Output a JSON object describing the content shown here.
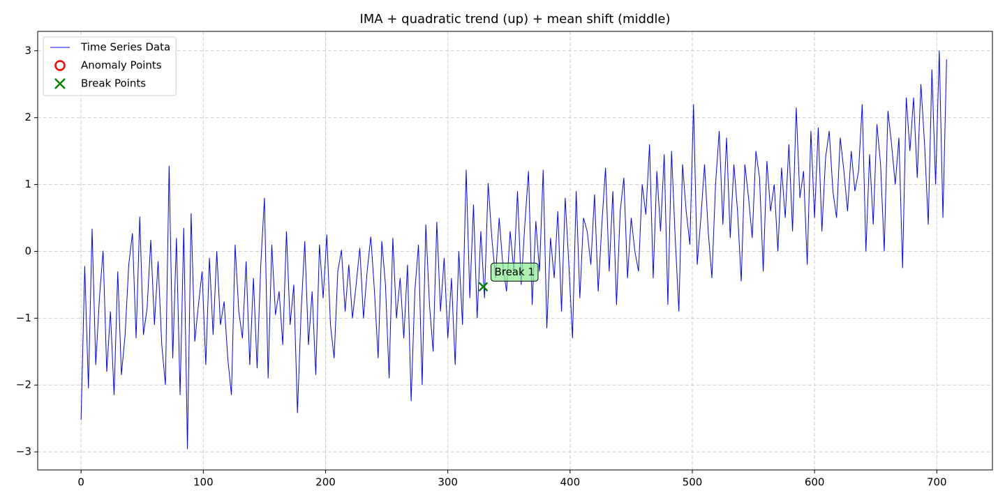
{
  "chart_data": {
    "type": "line",
    "title": "IMA + quadratic trend (up) + mean shift (middle)",
    "xlim": [
      -35.5,
      745.5
    ],
    "ylim": [
      -3.27,
      3.29
    ],
    "xticks": [
      0,
      100,
      200,
      300,
      400,
      500,
      600,
      700
    ],
    "yticks": [
      {
        "value": -3,
        "label": "−3"
      },
      {
        "value": -2,
        "label": "−2"
      },
      {
        "value": -1,
        "label": "−1"
      },
      0,
      1,
      2,
      3
    ],
    "grid": true,
    "legend": "upper left",
    "series": [
      {
        "name": "Time Series Data",
        "color": "#0000ff",
        "marker": "line",
        "x": [
          0,
          3,
          6,
          9,
          12,
          15,
          18,
          21,
          24,
          27,
          30,
          33,
          36,
          39,
          42,
          45,
          48,
          51,
          54,
          57,
          60,
          63,
          66,
          69,
          72,
          75,
          78,
          81,
          84,
          87,
          90,
          93,
          96,
          99,
          102,
          105,
          108,
          111,
          114,
          117,
          120,
          123,
          126,
          129,
          132,
          135,
          138,
          141,
          144,
          147,
          150,
          153,
          156,
          159,
          162,
          165,
          168,
          171,
          174,
          177,
          180,
          183,
          186,
          189,
          192,
          195,
          198,
          201,
          204,
          207,
          210,
          213,
          216,
          219,
          222,
          225,
          228,
          231,
          234,
          237,
          240,
          243,
          246,
          249,
          252,
          255,
          258,
          261,
          264,
          267,
          270,
          273,
          276,
          279,
          282,
          285,
          288,
          291,
          294,
          297,
          300,
          303,
          306,
          309,
          312,
          315,
          318,
          321,
          324,
          327,
          330,
          333,
          336,
          339,
          342,
          345,
          348,
          351,
          354,
          357,
          360,
          363,
          366,
          369,
          372,
          375,
          378,
          381,
          384,
          387,
          390,
          393,
          396,
          399,
          402,
          405,
          408,
          411,
          414,
          417,
          420,
          423,
          426,
          429,
          432,
          435,
          438,
          441,
          444,
          447,
          450,
          453,
          456,
          459,
          462,
          465,
          468,
          471,
          474,
          477,
          480,
          483,
          486,
          489,
          492,
          495,
          498,
          501,
          504,
          507,
          510,
          513,
          516,
          519,
          522,
          525,
          528,
          531,
          534,
          537,
          540,
          543,
          546,
          549,
          552,
          555,
          558,
          561,
          564,
          567,
          570,
          573,
          576,
          579,
          582,
          585,
          588,
          591,
          594,
          597,
          600,
          603,
          606,
          609,
          612,
          615,
          618,
          621,
          624,
          627,
          630,
          633,
          636,
          639,
          642,
          645,
          648,
          651,
          654,
          657,
          660,
          663,
          666,
          669,
          672,
          675,
          678,
          681,
          684,
          687,
          690,
          693,
          696,
          699,
          702,
          705,
          708
        ],
        "values": [
          -2.52,
          -0.22,
          -2.05,
          0.34,
          -1.7,
          -0.7,
          0.01,
          -1.8,
          -0.9,
          -2.15,
          -0.3,
          -1.85,
          -1.25,
          -0.2,
          0.27,
          -1.3,
          0.52,
          -1.25,
          -0.85,
          0.17,
          -1.1,
          -0.15,
          -1.4,
          -2.0,
          1.28,
          -1.6,
          0.2,
          -2.15,
          0.35,
          -2.96,
          0.57,
          -1.35,
          -0.8,
          -0.3,
          -1.7,
          -0.1,
          -1.25,
          0.0,
          -1.1,
          -0.75,
          -1.6,
          -2.15,
          0.1,
          -0.9,
          -1.3,
          -0.15,
          -1.7,
          -0.4,
          -1.75,
          -0.2,
          0.8,
          -1.9,
          0.1,
          -0.95,
          -0.6,
          -1.4,
          0.3,
          -1.1,
          -0.5,
          -2.42,
          -0.9,
          0.15,
          -1.4,
          -0.6,
          -1.85,
          0.1,
          -0.7,
          0.25,
          -1.1,
          -1.6,
          -0.3,
          0.02,
          -0.9,
          -0.2,
          -1.0,
          -0.5,
          0.05,
          -1.0,
          -0.3,
          0.22,
          -0.6,
          -1.6,
          0.15,
          -0.5,
          -1.9,
          0.2,
          -1.0,
          -0.4,
          -1.3,
          -0.2,
          -2.24,
          -0.6,
          0.1,
          -2.0,
          0.4,
          -0.8,
          -1.5,
          0.44,
          -0.9,
          -0.1,
          -1.3,
          -0.4,
          -1.7,
          0.0,
          -1.1,
          1.22,
          -0.7,
          0.7,
          -1.0,
          0.3,
          -0.7,
          1.02,
          0.2,
          -0.4,
          0.5,
          -0.2,
          -0.6,
          0.3,
          -0.3,
          0.9,
          -0.5,
          0.4,
          1.2,
          -0.8,
          0.45,
          -0.3,
          1.22,
          -1.15,
          0.2,
          -0.4,
          0.6,
          -0.9,
          0.8,
          -0.2,
          -1.3,
          0.9,
          -0.7,
          0.5,
          0.3,
          -0.2,
          0.85,
          -0.6,
          0.4,
          1.25,
          -0.3,
          0.9,
          -0.8,
          0.6,
          1.1,
          -0.4,
          0.5,
          0.0,
          -0.3,
          1.0,
          0.55,
          1.6,
          -0.4,
          1.2,
          0.3,
          1.45,
          -0.8,
          1.5,
          0.2,
          -0.9,
          1.3,
          0.6,
          0.1,
          2.2,
          -0.2,
          0.5,
          1.3,
          0.3,
          -0.4,
          1.0,
          1.8,
          0.4,
          1.7,
          0.2,
          1.3,
          0.6,
          -0.45,
          1.3,
          0.8,
          0.2,
          1.5,
          1.1,
          -0.3,
          1.35,
          0.6,
          1.0,
          0.0,
          1.25,
          0.5,
          1.6,
          0.3,
          2.15,
          0.8,
          1.2,
          -0.2,
          1.8,
          0.5,
          1.85,
          0.3,
          1.4,
          1.8,
          0.9,
          0.5,
          1.7,
          1.2,
          0.6,
          1.5,
          0.9,
          1.2,
          2.2,
          0.0,
          1.45,
          0.4,
          1.9,
          1.3,
          0.0,
          2.1,
          1.6,
          1.0,
          1.7,
          -0.25,
          2.3,
          1.5,
          2.3,
          1.1,
          2.5,
          1.6,
          0.4,
          2.72,
          1.0,
          3.0,
          0.5,
          2.87
        ]
      },
      {
        "name": "Anomaly Points",
        "color": "#ff0000",
        "marker": "circle",
        "x": [],
        "values": []
      },
      {
        "name": "Break Points",
        "color": "#008000",
        "marker": "x",
        "x": [
          329
        ],
        "values": [
          -0.53
        ],
        "labels": [
          "Break 1"
        ]
      }
    ]
  }
}
